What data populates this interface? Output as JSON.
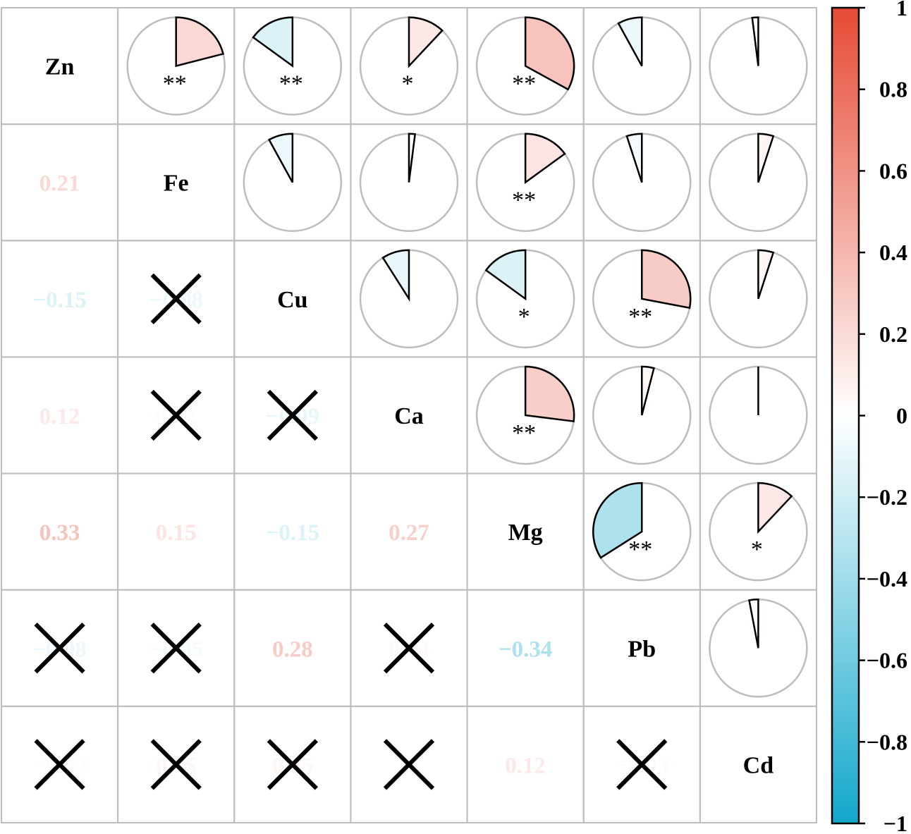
{
  "chart_data": {
    "type": "heatmap",
    "title": "",
    "variables": [
      "Zn",
      "Fe",
      "Cu",
      "Ca",
      "Mg",
      "Pb",
      "Cd"
    ],
    "pie_cells": [
      {
        "row": "Zn",
        "col": "Fe",
        "r": 0.21,
        "sig": "**"
      },
      {
        "row": "Zn",
        "col": "Cu",
        "r": -0.15,
        "sig": "**"
      },
      {
        "row": "Zn",
        "col": "Ca",
        "r": 0.12,
        "sig": "*"
      },
      {
        "row": "Zn",
        "col": "Mg",
        "r": 0.33,
        "sig": "**"
      },
      {
        "row": "Zn",
        "col": "Pb",
        "r": -0.08,
        "sig": ""
      },
      {
        "row": "Zn",
        "col": "Cd",
        "r": -0.02,
        "sig": ""
      },
      {
        "row": "Fe",
        "col": "Cu",
        "r": -0.08,
        "sig": ""
      },
      {
        "row": "Fe",
        "col": "Ca",
        "r": 0.02,
        "sig": ""
      },
      {
        "row": "Fe",
        "col": "Mg",
        "r": 0.15,
        "sig": "**"
      },
      {
        "row": "Fe",
        "col": "Pb",
        "r": -0.05,
        "sig": ""
      },
      {
        "row": "Fe",
        "col": "Cd",
        "r": 0.05,
        "sig": ""
      },
      {
        "row": "Cu",
        "col": "Ca",
        "r": -0.09,
        "sig": ""
      },
      {
        "row": "Cu",
        "col": "Mg",
        "r": -0.15,
        "sig": "*"
      },
      {
        "row": "Cu",
        "col": "Pb",
        "r": 0.28,
        "sig": "**"
      },
      {
        "row": "Cu",
        "col": "Cd",
        "r": 0.05,
        "sig": ""
      },
      {
        "row": "Ca",
        "col": "Mg",
        "r": 0.27,
        "sig": "**"
      },
      {
        "row": "Ca",
        "col": "Pb",
        "r": 0.04,
        "sig": ""
      },
      {
        "row": "Ca",
        "col": "Cd",
        "r": 0.0,
        "sig": ""
      },
      {
        "row": "Mg",
        "col": "Pb",
        "r": -0.34,
        "sig": "**"
      },
      {
        "row": "Mg",
        "col": "Cd",
        "r": 0.12,
        "sig": "*"
      },
      {
        "row": "Pb",
        "col": "Cd",
        "r": -0.03,
        "sig": ""
      }
    ],
    "coef_cells": [
      {
        "row": "Fe",
        "col": "Zn",
        "label": "0.21",
        "r": 0.21,
        "crossed": false
      },
      {
        "row": "Cu",
        "col": "Zn",
        "label": "−0.15",
        "r": -0.15,
        "crossed": false
      },
      {
        "row": "Cu",
        "col": "Fe",
        "label": "−0.08",
        "r": -0.08,
        "crossed": true
      },
      {
        "row": "Ca",
        "col": "Zn",
        "label": "0.12",
        "r": 0.12,
        "crossed": false
      },
      {
        "row": "Ca",
        "col": "Fe",
        "label": "0.02",
        "r": 0.02,
        "crossed": true
      },
      {
        "row": "Ca",
        "col": "Cu",
        "label": "−0.09",
        "r": -0.09,
        "crossed": true
      },
      {
        "row": "Mg",
        "col": "Zn",
        "label": "0.33",
        "r": 0.33,
        "crossed": false
      },
      {
        "row": "Mg",
        "col": "Fe",
        "label": "0.15",
        "r": 0.15,
        "crossed": false
      },
      {
        "row": "Mg",
        "col": "Cu",
        "label": "−0.15",
        "r": -0.15,
        "crossed": false
      },
      {
        "row": "Mg",
        "col": "Ca",
        "label": "0.27",
        "r": 0.27,
        "crossed": false
      },
      {
        "row": "Pb",
        "col": "Zn",
        "label": "−0.08",
        "r": -0.08,
        "crossed": true
      },
      {
        "row": "Pb",
        "col": "Fe",
        "label": "−0.05",
        "r": -0.05,
        "crossed": true
      },
      {
        "row": "Pb",
        "col": "Cu",
        "label": "0.28",
        "r": 0.28,
        "crossed": false
      },
      {
        "row": "Pb",
        "col": "Ca",
        "label": "0.04",
        "r": 0.04,
        "crossed": true
      },
      {
        "row": "Pb",
        "col": "Mg",
        "label": "−0.34",
        "r": -0.34,
        "crossed": false
      },
      {
        "row": "Cd",
        "col": "Zn",
        "label": "−0.02",
        "r": -0.02,
        "crossed": true
      },
      {
        "row": "Cd",
        "col": "Fe",
        "label": "0.05",
        "r": 0.05,
        "crossed": true
      },
      {
        "row": "Cd",
        "col": "Cu",
        "label": "0.05",
        "r": 0.05,
        "crossed": true
      },
      {
        "row": "Cd",
        "col": "Ca",
        "label": "0.00",
        "r": 0.0,
        "crossed": true
      },
      {
        "row": "Cd",
        "col": "Mg",
        "label": "0.12",
        "r": 0.12,
        "crossed": false
      },
      {
        "row": "Cd",
        "col": "Pb",
        "label": "−0.03",
        "r": -0.03,
        "crossed": true
      }
    ],
    "colorbar": {
      "range": [
        -1,
        1
      ],
      "ticks": [
        1,
        0.8,
        0.6,
        0.4,
        0.2,
        0,
        -0.2,
        -0.4,
        -0.6,
        -0.8,
        -1
      ],
      "tick_labels": [
        "1",
        "0.8",
        "0.6",
        "0.4",
        "0.2",
        "0",
        "−0.2",
        "−0.4",
        "−0.6",
        "−0.8",
        "−1"
      ],
      "colors": {
        "positive": "#e64a35",
        "zero": "#ffffff",
        "negative": "#12a7cc"
      }
    },
    "style": {
      "grid_color": "#bdbdbd",
      "outline_color": "#000000",
      "legend_position": "right"
    }
  }
}
